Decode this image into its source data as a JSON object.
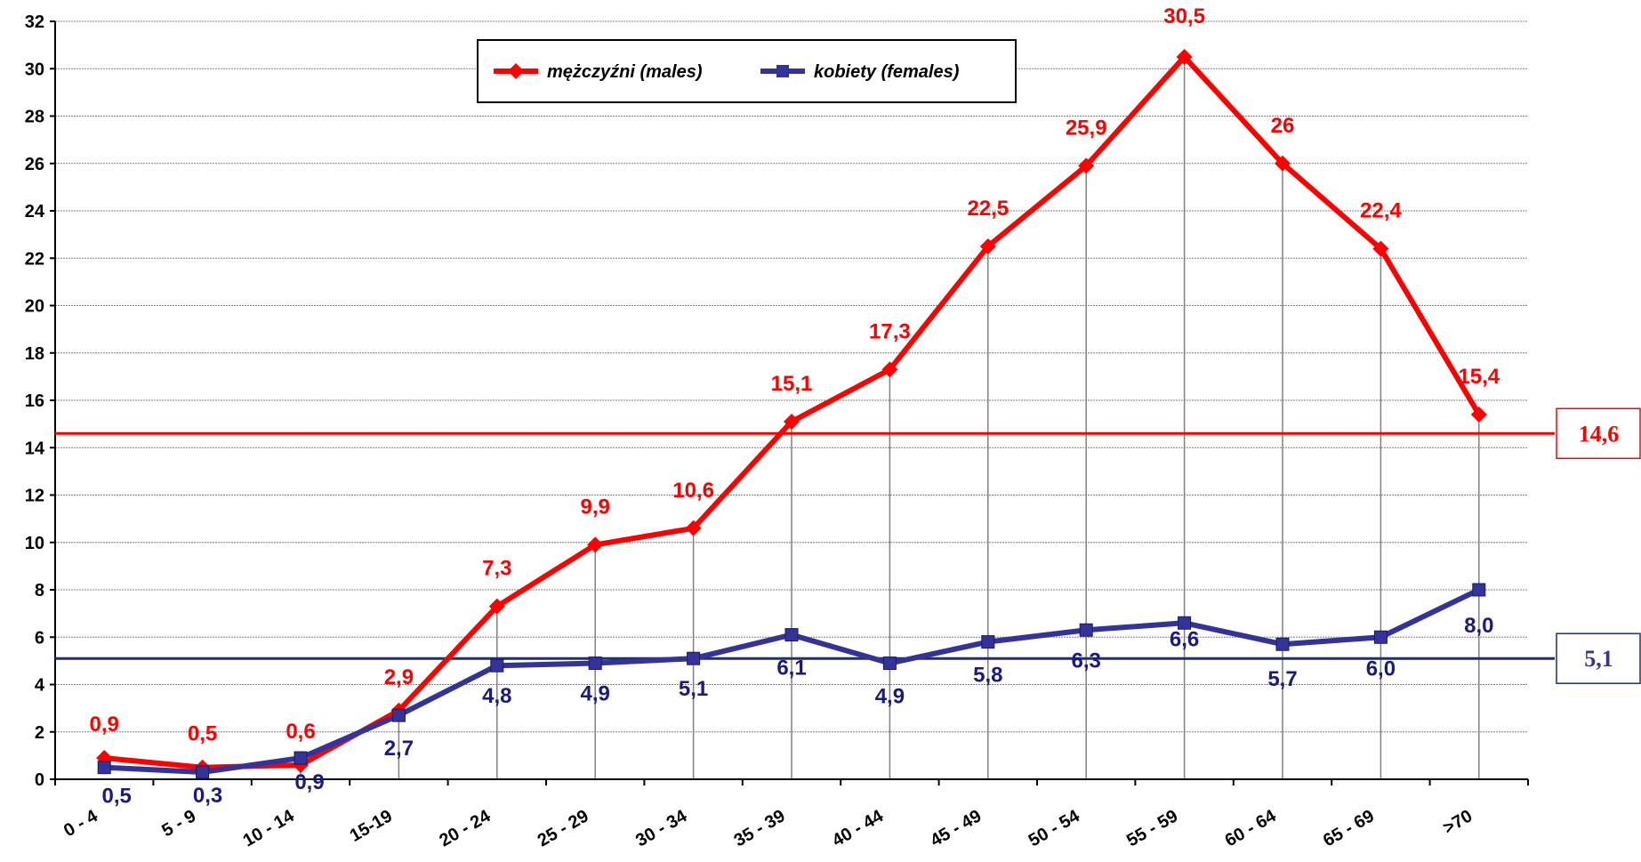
{
  "chart_data": {
    "type": "line",
    "categories": [
      "0 - 4",
      "5 - 9",
      "10 - 14",
      "15-19",
      "20 - 24",
      "25 - 29",
      "30 - 34",
      "35 - 39",
      "40 - 44",
      "45 - 49",
      "50 - 54",
      "55 - 59",
      "60 - 64",
      "65 - 69",
      ">70"
    ],
    "ylim": [
      0,
      32
    ],
    "yticks": [
      "0",
      "2",
      "4",
      "6",
      "8",
      "10",
      "12",
      "14",
      "16",
      "18",
      "20",
      "22",
      "24",
      "26",
      "28",
      "30",
      "32"
    ],
    "grid": true,
    "legend_position": "top-center",
    "series": [
      {
        "name": "mężczyźni (males)",
        "color": "#ff0000",
        "marker": "diamond",
        "values": [
          0.9,
          0.5,
          0.6,
          2.9,
          7.3,
          9.9,
          10.6,
          15.1,
          17.3,
          22.5,
          25.9,
          30.5,
          26.0,
          22.4,
          15.4
        ],
        "labels": [
          "0,9",
          "0,5",
          "0,6",
          "2,9",
          "7,3",
          "9,9",
          "10,6",
          "15,1",
          "17,3",
          "22,5",
          "25,9",
          "30,5",
          "26",
          "22,4",
          "15,4"
        ]
      },
      {
        "name": "kobiety (females)",
        "color": "#333399",
        "marker": "square",
        "values": [
          0.5,
          0.3,
          0.9,
          2.7,
          4.8,
          4.9,
          5.1,
          6.1,
          4.9,
          5.8,
          6.3,
          6.6,
          5.7,
          6.0,
          8.0
        ],
        "labels": [
          "0,5",
          "0,3",
          "0,9",
          "2,7",
          "4,8",
          "4,9",
          "5,1",
          "6,1",
          "4,9",
          "5,8",
          "6,3",
          "6,6",
          "5,7",
          "6,0",
          "8,0"
        ]
      }
    ],
    "reference_lines": [
      {
        "value": 14.6,
        "label": "14,6",
        "color": "#ff0000"
      },
      {
        "value": 5.1,
        "label": "5,1",
        "color": "#1f2f6f",
        "text_color": "#333399"
      }
    ]
  }
}
